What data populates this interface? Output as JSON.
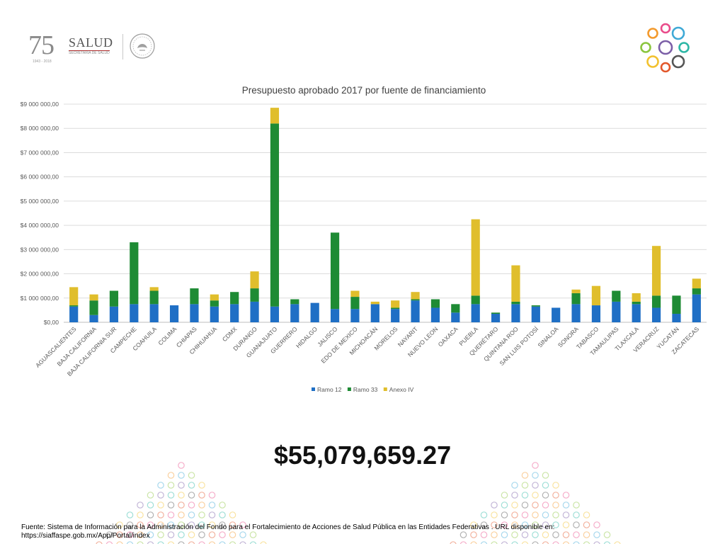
{
  "branding": {
    "anniversary_number": "75",
    "anniversary_years": "1943 - 2018",
    "ministry_name": "SALUD",
    "ministry_subtitle": "SECRETARÍA DE SALUD"
  },
  "chart_data": {
    "type": "bar",
    "stacked": true,
    "title": "Presupuesto aprobado 2017 por fuente de financiamiento",
    "xlabel": "",
    "ylabel": "",
    "ylim": [
      0,
      9000000
    ],
    "y_ticks": [
      0,
      1000000,
      2000000,
      3000000,
      4000000,
      5000000,
      6000000,
      7000000,
      8000000,
      9000000
    ],
    "y_tick_labels": [
      "$0,00",
      "$1 000 000,00",
      "$2 000 000,00",
      "$3 000 000,00",
      "$4 000 000,00",
      "$5 000 000,00",
      "$6 000 000,00",
      "$7 000 000,00",
      "$8 000 000,00",
      "$9 000 000,00"
    ],
    "grid": true,
    "legend_position": "bottom",
    "categories": [
      "AGUASCALIENTES",
      "BAJA CALIFORNIA",
      "BAJA CALIFORNIA SUR",
      "CAMPECHE",
      "COAHUILA",
      "COLIMA",
      "CHIAPAS",
      "CHIHUAHUA",
      "CDMX",
      "DURANGO",
      "GUANAJUATO",
      "GUERRERO",
      "HIDALGO",
      "JALISCO",
      "EDO DE MEXICO",
      "MICHOACÁN",
      "MORELOS",
      "NAYARIT",
      "NUEVO LEON",
      "OAXACA",
      "PUEBLA",
      "QUERÉTARO",
      "QUINTANA ROO",
      "SAN LUIS POTOSÍ",
      "SINALOA",
      "SONORA",
      "TABASCO",
      "TAMAULIPAS",
      "TLAXCALA",
      "VERACRUZ",
      "YUCATÁN",
      "ZACATECAS"
    ],
    "series": [
      {
        "name": "Ramo 12",
        "color": "#1F6FC5",
        "values": [
          650000,
          300000,
          650000,
          750000,
          750000,
          700000,
          750000,
          650000,
          750000,
          850000,
          650000,
          750000,
          800000,
          550000,
          550000,
          750000,
          550000,
          900000,
          600000,
          400000,
          750000,
          350000,
          750000,
          650000,
          600000,
          750000,
          700000,
          850000,
          750000,
          600000,
          350000,
          1150000
        ]
      },
      {
        "name": "Ramo 33",
        "color": "#1E8B34",
        "values": [
          50000,
          600000,
          650000,
          2550000,
          550000,
          0,
          650000,
          250000,
          500000,
          550000,
          7550000,
          200000,
          0,
          3150000,
          500000,
          0,
          50000,
          50000,
          350000,
          350000,
          350000,
          50000,
          100000,
          50000,
          0,
          450000,
          0,
          450000,
          100000,
          500000,
          750000,
          250000
        ]
      },
      {
        "name": "Anexo IV",
        "color": "#E0BE2C",
        "values": [
          750000,
          250000,
          0,
          0,
          150000,
          0,
          0,
          250000,
          0,
          700000,
          650000,
          0,
          0,
          0,
          250000,
          100000,
          300000,
          300000,
          0,
          0,
          3150000,
          0,
          1500000,
          0,
          0,
          150000,
          800000,
          0,
          350000,
          2050000,
          0,
          400000
        ]
      }
    ]
  },
  "summary": {
    "total": "$55,079,659.27"
  },
  "footer": {
    "source_text": "Fuente: Sistema de Información para la Administración del Fondo para el Fortalecimiento de Acciones de Salud Pública en las Entidades Federativas . URL disponible en: https://siaffaspe.gob.mx/App/Portal/index"
  }
}
